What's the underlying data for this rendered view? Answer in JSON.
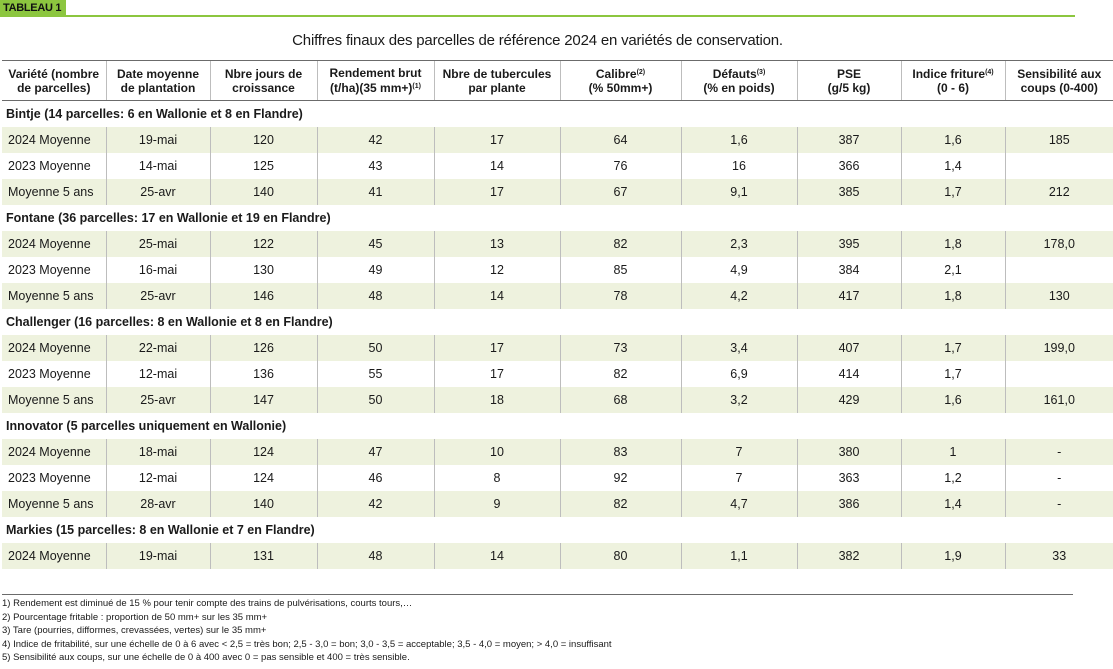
{
  "tag": "TABLEAU 1",
  "title": "Chiffres finaux des parcelles de référence 2024 en variétés de conservation.",
  "headers": [
    {
      "text": "Variété (nombre de parcelles)",
      "sup": ""
    },
    {
      "text": "Date moyenne de plantation",
      "sup": ""
    },
    {
      "text": "Nbre jours de croissance",
      "sup": ""
    },
    {
      "text": "Rendement brut (t/ha)(35 mm+)",
      "sup": "(1)"
    },
    {
      "text": "Nbre de tubercules par plante",
      "sup": ""
    },
    {
      "text": "Calibre",
      "sup": "(2)",
      "line2": "(% 50mm+)"
    },
    {
      "text": "Défauts",
      "sup": "(3)",
      "line2": "(% en poids)"
    },
    {
      "text": "PSE",
      "sup": "",
      "line2": "(g/5 kg)"
    },
    {
      "text": "Indice friture",
      "sup": "(4)",
      "line2": "(0 - 6)"
    },
    {
      "text": "Sensibilité aux coups (0-400)",
      "sup": ""
    }
  ],
  "groups": [
    {
      "label": "Bintje (14 parcelles: 6 en Wallonie et 8 en Flandre)",
      "rows": [
        [
          "2024 Moyenne",
          "19-mai",
          "120",
          "42",
          "17",
          "64",
          "1,6",
          "387",
          "1,6",
          "185"
        ],
        [
          "2023 Moyenne",
          "14-mai",
          "125",
          "43",
          "14",
          "76",
          "16",
          "366",
          "1,4",
          ""
        ],
        [
          "Moyenne 5 ans",
          "25-avr",
          "140",
          "41",
          "17",
          "67",
          "9,1",
          "385",
          "1,7",
          "212"
        ]
      ]
    },
    {
      "label": "Fontane (36 parcelles: 17 en Wallonie et 19 en Flandre)",
      "rows": [
        [
          "2024 Moyenne",
          "25-mai",
          "122",
          "45",
          "13",
          "82",
          "2,3",
          "395",
          "1,8",
          "178,0"
        ],
        [
          "2023 Moyenne",
          "16-mai",
          "130",
          "49",
          "12",
          "85",
          "4,9",
          "384",
          "2,1",
          ""
        ],
        [
          "Moyenne 5 ans",
          "25-avr",
          "146",
          "48",
          "14",
          "78",
          "4,2",
          "417",
          "1,8",
          "130"
        ]
      ]
    },
    {
      "label": "Challenger (16 parcelles: 8 en Wallonie et 8 en Flandre)",
      "rows": [
        [
          "2024 Moyenne",
          "22-mai",
          "126",
          "50",
          "17",
          "73",
          "3,4",
          "407",
          "1,7",
          "199,0"
        ],
        [
          "2023 Moyenne",
          "12-mai",
          "136",
          "55",
          "17",
          "82",
          "6,9",
          "414",
          "1,7",
          ""
        ],
        [
          "Moyenne 5 ans",
          "25-avr",
          "147",
          "50",
          "18",
          "68",
          "3,2",
          "429",
          "1,6",
          "161,0"
        ]
      ]
    },
    {
      "label": "Innovator (5 parcelles uniquement en Wallonie)",
      "rows": [
        [
          "2024 Moyenne",
          "18-mai",
          "124",
          "47",
          "10",
          "83",
          "7",
          "380",
          "1",
          "-"
        ],
        [
          "2023 Moyenne",
          "12-mai",
          "124",
          "46",
          "8",
          "92",
          "7",
          "363",
          "1,2",
          "-"
        ],
        [
          "Moyenne 5 ans",
          "28-avr",
          "140",
          "42",
          "9",
          "82",
          "4,7",
          "386",
          "1,4",
          "-"
        ]
      ]
    },
    {
      "label": "Markies (15 parcelles: 8 en Wallonie et 7 en Flandre)",
      "rows": [
        [
          "2024 Moyenne",
          "19-mai",
          "131",
          "48",
          "14",
          "80",
          "1,1",
          "382",
          "1,9",
          "33"
        ]
      ]
    }
  ],
  "footnotes": [
    "1) Rendement est diminué de 15 % pour tenir compte des trains de pulvérisations, courts tours,…",
    "2) Pourcentage fritable : proportion de 50 mm+ sur les 35 mm+",
    "3) Tare (pourries, difformes, crevassées, vertes) sur le 35 mm+",
    "4) Indice de fritabilité, sur une échelle de 0 à 6 avec < 2,5 = très bon; 2,5 - 3,0 = bon; 3,0 - 3,5 = acceptable; 3,5 - 4,0 = moyen; > 4,0 = insuffisant",
    "5) Sensibilité aux coups, sur une échelle de 0 à 400 avec 0 = pas sensible et 400 = très sensible."
  ],
  "colors": {
    "accent": "#8cc63f",
    "row_shade": "#eef2de"
  }
}
